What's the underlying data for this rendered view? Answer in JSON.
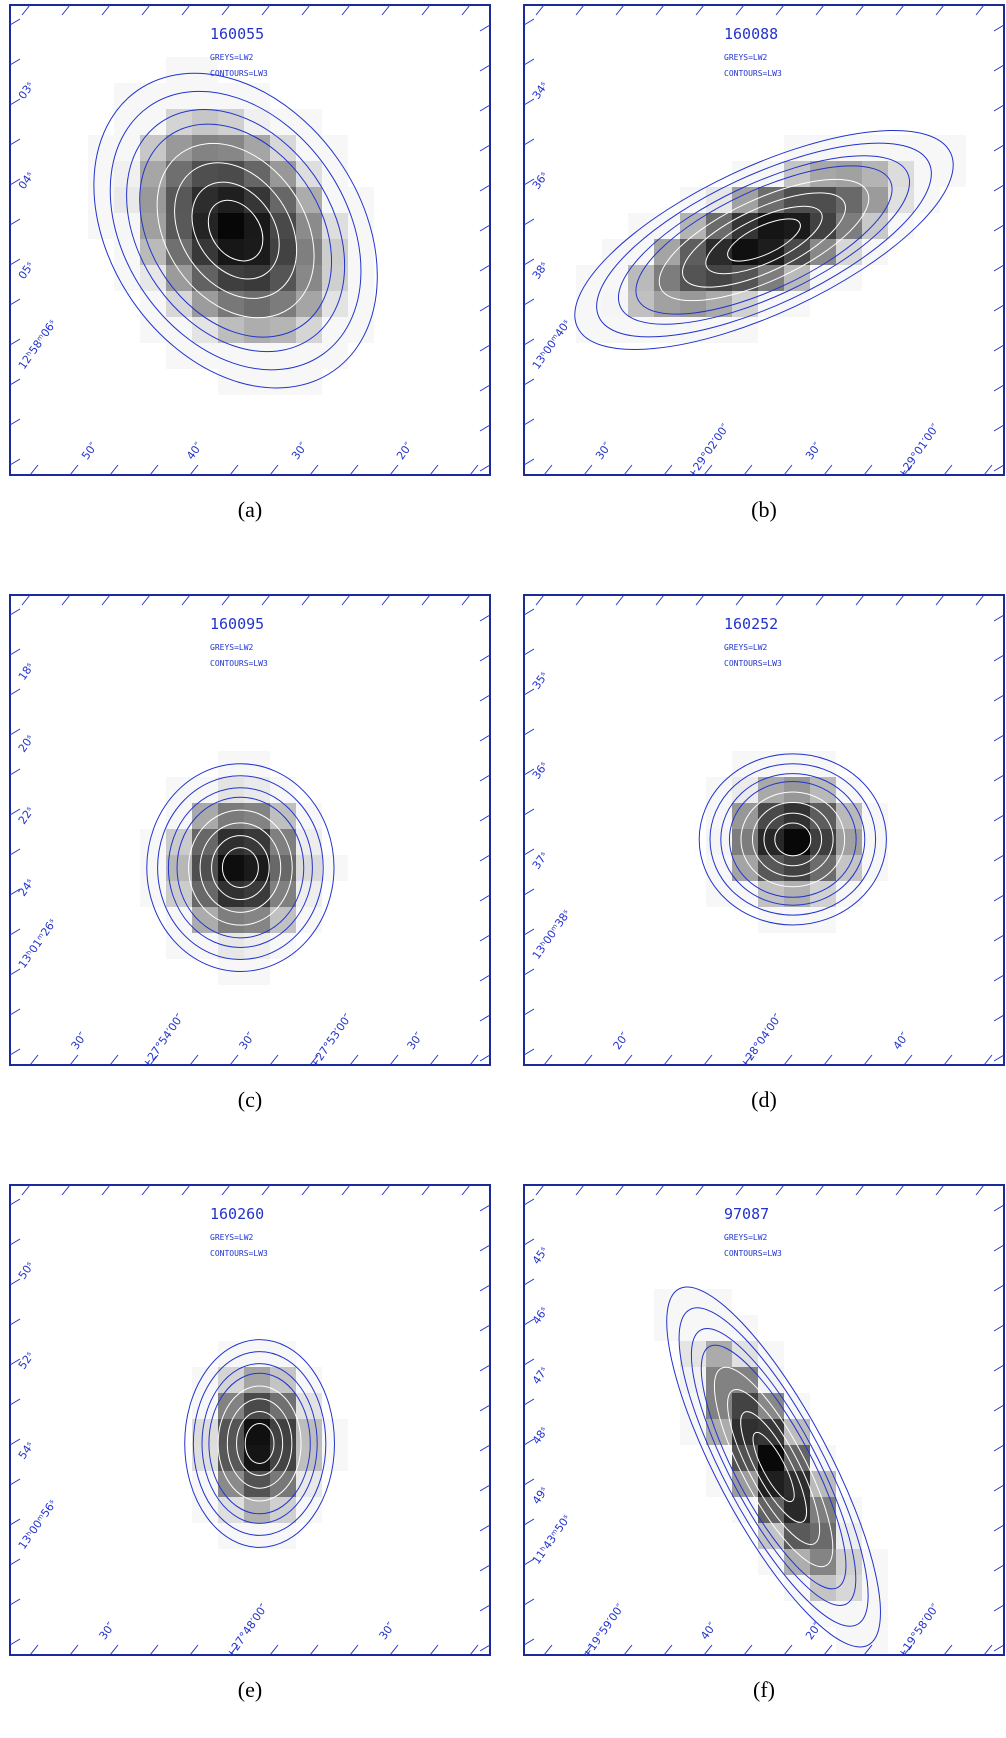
{
  "panels": [
    {
      "id": "160055",
      "greys": "GREYS=LW2",
      "contours": "CONTOURS=LW3",
      "caption": "(a)",
      "left_labels": [
        "03ˢ",
        "04ˢ",
        "05ˢ",
        "12ʰ58ᵐ06ˢ"
      ],
      "bottom_labels": [
        "50″",
        "40″",
        "30″",
        "20″"
      ]
    },
    {
      "id": "160088",
      "greys": "GREYS=LW2",
      "contours": "CONTOURS=LW3",
      "caption": "(b)",
      "left_labels": [
        "34ˢ",
        "36ˢ",
        "38ˢ",
        "13ʰ00ᵐ40ˢ"
      ],
      "bottom_labels": [
        "30″",
        "+29°02′00″",
        "30″",
        "+29°01′00″"
      ]
    },
    {
      "id": "160095",
      "greys": "GREYS=LW2",
      "contours": "CONTOURS=LW3",
      "caption": "(c)",
      "left_labels": [
        "18ˢ",
        "20ˢ",
        "22ˢ",
        "24ˢ",
        "13ʰ01ᵐ26ˢ"
      ],
      "bottom_labels": [
        "30″",
        "+27°54′00″",
        "30″",
        "+27°53′00″",
        "30″"
      ]
    },
    {
      "id": "160252",
      "greys": "GREYS=LW2",
      "contours": "CONTOURS=LW3",
      "caption": "(d)",
      "left_labels": [
        "35ˢ",
        "36ˢ",
        "37ˢ",
        "13ʰ00ᵐ38ˢ"
      ],
      "bottom_labels": [
        "20″",
        "+28°04′00″",
        "40″"
      ]
    },
    {
      "id": "160260",
      "greys": "GREYS=LW2",
      "contours": "CONTOURS=LW3",
      "caption": "(e)",
      "left_labels": [
        "50ˢ",
        "52ˢ",
        "54ˢ",
        "13ʰ00ᵐ56ˢ"
      ],
      "bottom_labels": [
        "30″",
        "+27°48′00″",
        "30″"
      ]
    },
    {
      "id": "97087",
      "greys": "GREYS=LW2",
      "contours": "CONTOURS=LW3",
      "caption": "(f)",
      "left_labels": [
        "45ˢ",
        "46ˢ",
        "47ˢ",
        "48ˢ",
        "49ˢ",
        "11ʰ43ᵐ50ˢ"
      ],
      "bottom_labels": [
        "+19°59′00″",
        "40″",
        "20″",
        "+19°58′00″"
      ]
    }
  ]
}
